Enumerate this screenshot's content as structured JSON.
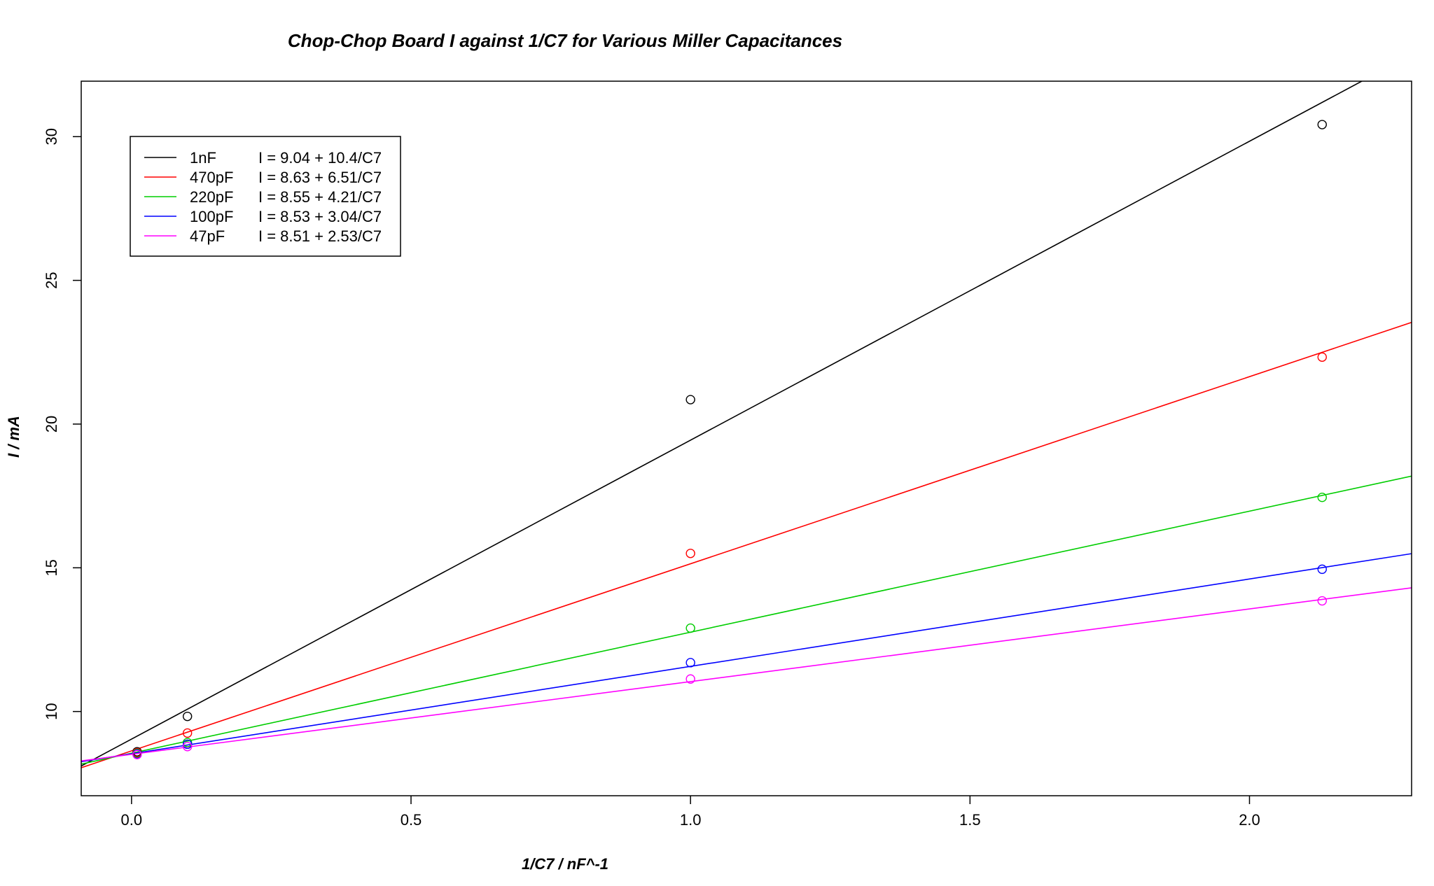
{
  "chart_data": {
    "type": "scatter",
    "title": "Chop-Chop Board I against 1/C7 for Various Miller Capacitances",
    "xlabel": "1/C7 / nF^-1",
    "ylabel": "I / mA",
    "xlim": [
      -0.09,
      2.29
    ],
    "ylim": [
      7.07,
      31.93
    ],
    "xticks": [
      0.0,
      0.5,
      1.0,
      1.5,
      2.0
    ],
    "xtick_labels": [
      "0.0",
      "0.5",
      "1.0",
      "1.5",
      "2.0"
    ],
    "yticks": [
      10,
      15,
      20,
      25,
      30
    ],
    "ytick_labels": [
      "10",
      "15",
      "20",
      "25",
      "30"
    ],
    "grid": false,
    "legend_position": "top-left",
    "x": [
      0.01,
      0.1,
      1.0,
      2.13
    ],
    "series": [
      {
        "name": "1nF",
        "equation": "I = 9.04 + 10.4/C7",
        "color": "#000000",
        "intercept": 9.04,
        "slope": 10.4,
        "y": [
          8.6,
          9.83,
          20.85,
          30.42
        ]
      },
      {
        "name": "470pF",
        "equation": "I = 8.63 + 6.51/C7",
        "color": "#ff0000",
        "intercept": 8.63,
        "slope": 6.51,
        "y": [
          8.57,
          9.25,
          15.5,
          22.33
        ]
      },
      {
        "name": "220pF",
        "equation": "I = 8.55 + 4.21/C7",
        "color": "#00cd00",
        "intercept": 8.55,
        "slope": 4.21,
        "y": [
          8.54,
          8.92,
          12.9,
          17.45
        ]
      },
      {
        "name": "100pF",
        "equation": "I = 8.53 + 3.04/C7",
        "color": "#0000ff",
        "intercept": 8.53,
        "slope": 3.04,
        "y": [
          8.52,
          8.86,
          11.7,
          14.95
        ]
      },
      {
        "name": "47pF",
        "equation": "I = 8.51 + 2.53/C7",
        "color": "#ff00ff",
        "intercept": 8.51,
        "slope": 2.53,
        "y": [
          8.5,
          8.78,
          11.13,
          13.85
        ]
      }
    ]
  }
}
